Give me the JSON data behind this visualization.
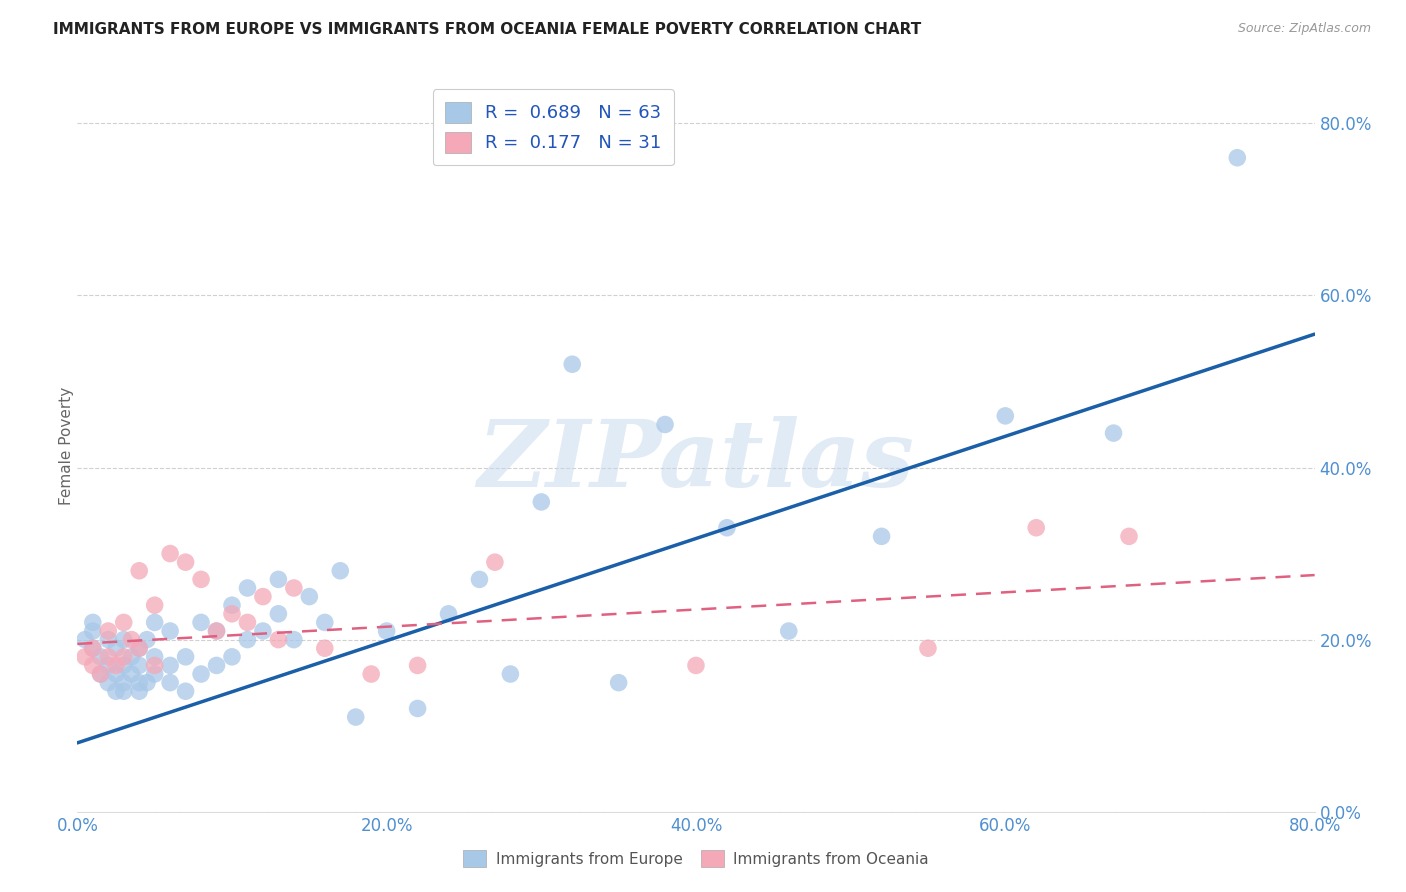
{
  "title": "IMMIGRANTS FROM EUROPE VS IMMIGRANTS FROM OCEANIA FEMALE POVERTY CORRELATION CHART",
  "source": "Source: ZipAtlas.com",
  "ylabel_label": "Female Poverty",
  "xlim": [
    0.0,
    0.8
  ],
  "ylim": [
    0.0,
    0.85
  ],
  "legend_europe_r": "0.689",
  "legend_europe_n": "63",
  "legend_oceania_r": "0.177",
  "legend_oceania_n": "31",
  "europe_color": "#a8c8e8",
  "oceania_color": "#f4a8b8",
  "europe_line_color": "#1a5fa8",
  "oceania_line_color": "#e06080",
  "blue_scatter_x": [
    0.005,
    0.01,
    0.01,
    0.01,
    0.015,
    0.015,
    0.02,
    0.02,
    0.02,
    0.025,
    0.025,
    0.025,
    0.03,
    0.03,
    0.03,
    0.03,
    0.035,
    0.035,
    0.04,
    0.04,
    0.04,
    0.04,
    0.045,
    0.045,
    0.05,
    0.05,
    0.05,
    0.06,
    0.06,
    0.06,
    0.07,
    0.07,
    0.08,
    0.08,
    0.09,
    0.09,
    0.1,
    0.1,
    0.11,
    0.11,
    0.12,
    0.13,
    0.13,
    0.14,
    0.15,
    0.16,
    0.17,
    0.18,
    0.2,
    0.22,
    0.24,
    0.26,
    0.28,
    0.3,
    0.32,
    0.35,
    0.38,
    0.42,
    0.46,
    0.52,
    0.6,
    0.67,
    0.75
  ],
  "blue_scatter_y": [
    0.2,
    0.19,
    0.21,
    0.22,
    0.16,
    0.18,
    0.15,
    0.17,
    0.2,
    0.14,
    0.16,
    0.19,
    0.14,
    0.15,
    0.17,
    0.2,
    0.16,
    0.18,
    0.14,
    0.15,
    0.17,
    0.19,
    0.15,
    0.2,
    0.16,
    0.18,
    0.22,
    0.15,
    0.17,
    0.21,
    0.14,
    0.18,
    0.16,
    0.22,
    0.17,
    0.21,
    0.18,
    0.24,
    0.2,
    0.26,
    0.21,
    0.23,
    0.27,
    0.2,
    0.25,
    0.22,
    0.28,
    0.11,
    0.21,
    0.12,
    0.23,
    0.27,
    0.16,
    0.36,
    0.52,
    0.15,
    0.45,
    0.33,
    0.21,
    0.32,
    0.46,
    0.44,
    0.76
  ],
  "pink_scatter_x": [
    0.005,
    0.01,
    0.01,
    0.015,
    0.02,
    0.02,
    0.025,
    0.03,
    0.03,
    0.035,
    0.04,
    0.04,
    0.05,
    0.05,
    0.06,
    0.07,
    0.08,
    0.09,
    0.1,
    0.11,
    0.12,
    0.13,
    0.14,
    0.16,
    0.19,
    0.22,
    0.27,
    0.4,
    0.55,
    0.62,
    0.68
  ],
  "pink_scatter_y": [
    0.18,
    0.17,
    0.19,
    0.16,
    0.18,
    0.21,
    0.17,
    0.18,
    0.22,
    0.2,
    0.19,
    0.28,
    0.17,
    0.24,
    0.3,
    0.29,
    0.27,
    0.21,
    0.23,
    0.22,
    0.25,
    0.2,
    0.26,
    0.19,
    0.16,
    0.17,
    0.29,
    0.17,
    0.19,
    0.33,
    0.32
  ],
  "blue_trend_x": [
    0.0,
    0.8
  ],
  "blue_trend_y": [
    0.08,
    0.555
  ],
  "pink_trend_x": [
    0.0,
    0.8
  ],
  "pink_trend_y": [
    0.195,
    0.275
  ],
  "background_color": "#ffffff",
  "grid_color": "#d0d0d0"
}
